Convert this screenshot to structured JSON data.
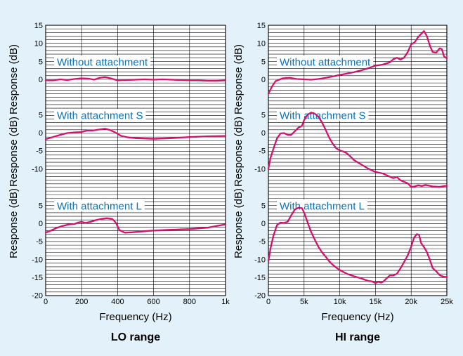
{
  "colors": {
    "background": "#e3f1fb",
    "curve": "#d4116c",
    "label": "#0b72b5",
    "grid": "#000000"
  },
  "chart_data": [
    {
      "type": "line",
      "caption": "LO range",
      "xlabel": "Frequency (Hz)",
      "ylabel": "Response (dB)",
      "xlim": [
        0,
        1000
      ],
      "x_tick_values": [
        0,
        200,
        400,
        600,
        800,
        1000
      ],
      "x_tick_labels": [
        "0",
        "200",
        "400",
        "600",
        "800",
        "1k"
      ],
      "grid": true,
      "panels": [
        {
          "label": "Without attachment",
          "ylim": [
            -10,
            15
          ],
          "y_ticks": [
            15,
            10,
            5,
            0
          ],
          "series": [
            {
              "points": [
                [
                  0,
                  -0.3
                ],
                [
                  40,
                  -0.3
                ],
                [
                  80,
                  0
                ],
                [
                  120,
                  -0.2
                ],
                [
                  160,
                  0.1
                ],
                [
                  200,
                  0.3
                ],
                [
                  240,
                  0.2
                ],
                [
                  270,
                  -0.1
                ],
                [
                  300,
                  0.4
                ],
                [
                  330,
                  0.6
                ],
                [
                  360,
                  0.3
                ],
                [
                  400,
                  -0.3
                ],
                [
                  450,
                  -0.2
                ],
                [
                  500,
                  -0.1
                ],
                [
                  550,
                  0
                ],
                [
                  600,
                  -0.1
                ],
                [
                  650,
                  0
                ],
                [
                  700,
                  -0.1
                ],
                [
                  750,
                  -0.2
                ],
                [
                  800,
                  -0.3
                ],
                [
                  850,
                  -0.3
                ],
                [
                  900,
                  -0.4
                ],
                [
                  950,
                  -0.4
                ],
                [
                  1000,
                  -0.3
                ]
              ]
            }
          ]
        },
        {
          "label": "With attachment S",
          "ylim": [
            -15,
            10
          ],
          "y_ticks": [
            5,
            0,
            -5,
            -10
          ],
          "series": [
            {
              "points": [
                [
                  0,
                  -1.8
                ],
                [
                  40,
                  -1.2
                ],
                [
                  80,
                  -0.6
                ],
                [
                  120,
                  -0.1
                ],
                [
                  160,
                  0.1
                ],
                [
                  200,
                  0.2
                ],
                [
                  230,
                  0.6
                ],
                [
                  260,
                  0.6
                ],
                [
                  300,
                  0.9
                ],
                [
                  330,
                  1.1
                ],
                [
                  360,
                  0.7
                ],
                [
                  390,
                  0
                ],
                [
                  420,
                  -0.9
                ],
                [
                  460,
                  -1.3
                ],
                [
                  500,
                  -1.5
                ],
                [
                  600,
                  -1.7
                ],
                [
                  700,
                  -1.5
                ],
                [
                  800,
                  -1.2
                ],
                [
                  900,
                  -1
                ],
                [
                  1000,
                  -0.9
                ]
              ]
            }
          ]
        },
        {
          "label": "With attachment L",
          "ylim": [
            -20,
            5
          ],
          "y_ticks": [
            5,
            0,
            -5,
            -10,
            -15,
            -20
          ],
          "series": [
            {
              "points": [
                [
                  0,
                  -2.6
                ],
                [
                  30,
                  -2
                ],
                [
                  60,
                  -1.3
                ],
                [
                  90,
                  -0.8
                ],
                [
                  130,
                  -0.3
                ],
                [
                  160,
                  -0.2
                ],
                [
                  180,
                  0.2
                ],
                [
                  200,
                  0.4
                ],
                [
                  220,
                  0.1
                ],
                [
                  250,
                  0.4
                ],
                [
                  280,
                  0.9
                ],
                [
                  310,
                  1.2
                ],
                [
                  340,
                  1.4
                ],
                [
                  370,
                  1.2
                ],
                [
                  390,
                  0.2
                ],
                [
                  410,
                  -1.9
                ],
                [
                  440,
                  -2.6
                ],
                [
                  480,
                  -2.5
                ],
                [
                  550,
                  -2.2
                ],
                [
                  600,
                  -2
                ],
                [
                  700,
                  -1.8
                ],
                [
                  800,
                  -1.6
                ],
                [
                  900,
                  -1.2
                ],
                [
                  1000,
                  -0.3
                ]
              ]
            }
          ]
        }
      ]
    },
    {
      "type": "line",
      "caption": "HI range",
      "xlabel": "Frequency (Hz)",
      "ylabel": "Response (dB)",
      "xlim": [
        0,
        25000
      ],
      "x_tick_values": [
        0,
        5000,
        10000,
        15000,
        20000,
        25000
      ],
      "x_tick_labels": [
        "0",
        "5k",
        "10k",
        "15k",
        "20k",
        "25k"
      ],
      "grid": true,
      "panels": [
        {
          "label": "Without attachment",
          "ylim": [
            -10,
            15
          ],
          "y_ticks": [
            15,
            10,
            5,
            0
          ],
          "series": [
            {
              "points": [
                [
                  0,
                  -4
                ],
                [
                  500,
                  -2
                ],
                [
                  1000,
                  -0.5
                ],
                [
                  2000,
                  0.3
                ],
                [
                  3000,
                  0.4
                ],
                [
                  4000,
                  0.1
                ],
                [
                  5000,
                  0
                ],
                [
                  6000,
                  -0.1
                ],
                [
                  7000,
                  0.1
                ],
                [
                  8000,
                  0.4
                ],
                [
                  9000,
                  0.8
                ],
                [
                  10000,
                  1.2
                ],
                [
                  11000,
                  1.6
                ],
                [
                  12000,
                  2
                ],
                [
                  13000,
                  2.5
                ],
                [
                  14000,
                  3.1
                ],
                [
                  15000,
                  3.8
                ],
                [
                  16000,
                  4.1
                ],
                [
                  17000,
                  4.7
                ],
                [
                  17500,
                  5.6
                ],
                [
                  18000,
                  6
                ],
                [
                  18500,
                  5.5
                ],
                [
                  19000,
                  6
                ],
                [
                  19500,
                  7.5
                ],
                [
                  20000,
                  9.7
                ],
                [
                  20500,
                  10.3
                ],
                [
                  21000,
                  11.8
                ],
                [
                  21500,
                  12.8
                ],
                [
                  21800,
                  13.4
                ],
                [
                  22200,
                  12
                ],
                [
                  22600,
                  9.5
                ],
                [
                  23000,
                  7.6
                ],
                [
                  23500,
                  7.4
                ],
                [
                  24000,
                  8.6
                ],
                [
                  24300,
                  8.4
                ],
                [
                  24600,
                  6.4
                ],
                [
                  25000,
                  5.8
                ]
              ]
            }
          ]
        },
        {
          "label": "With attachment S",
          "ylim": [
            -15,
            10
          ],
          "y_ticks": [
            5,
            0,
            -5,
            -10
          ],
          "series": [
            {
              "points": [
                [
                  0,
                  -10
                ],
                [
                  300,
                  -7
                ],
                [
                  700,
                  -4.5
                ],
                [
                  1200,
                  -1.6
                ],
                [
                  1700,
                  -0.2
                ],
                [
                  2200,
                  -0.1
                ],
                [
                  2700,
                  -0.6
                ],
                [
                  3200,
                  -0.6
                ],
                [
                  3700,
                  0.4
                ],
                [
                  4200,
                  1.4
                ],
                [
                  4700,
                  1.9
                ],
                [
                  5000,
                  3.5
                ],
                [
                  5500,
                  5
                ],
                [
                  6000,
                  5.6
                ],
                [
                  6500,
                  5.3
                ],
                [
                  7000,
                  4.4
                ],
                [
                  7500,
                  2.9
                ],
                [
                  8000,
                  0.9
                ],
                [
                  8500,
                  -1.3
                ],
                [
                  9000,
                  -3
                ],
                [
                  9500,
                  -4.3
                ],
                [
                  10000,
                  -4.9
                ],
                [
                  10500,
                  -5.2
                ],
                [
                  11000,
                  -5.7
                ],
                [
                  11500,
                  -6.6
                ],
                [
                  12000,
                  -7.6
                ],
                [
                  13000,
                  -8.8
                ],
                [
                  14000,
                  -10
                ],
                [
                  15000,
                  -10.9
                ],
                [
                  16000,
                  -11.3
                ],
                [
                  17000,
                  -12.2
                ],
                [
                  17500,
                  -12.6
                ],
                [
                  18000,
                  -12.3
                ],
                [
                  18500,
                  -13.2
                ],
                [
                  19500,
                  -14
                ],
                [
                  20000,
                  -15
                ],
                [
                  20500,
                  -14.9
                ],
                [
                  21000,
                  -14.6
                ],
                [
                  21500,
                  -14.8
                ],
                [
                  22000,
                  -14.5
                ],
                [
                  23000,
                  -14.9
                ],
                [
                  24000,
                  -15
                ],
                [
                  25000,
                  -14.7
                ]
              ]
            }
          ]
        },
        {
          "label": "With attachment L",
          "ylim": [
            -20,
            5
          ],
          "y_ticks": [
            5,
            0,
            -5,
            -10,
            -15,
            -20
          ],
          "series": [
            {
              "points": [
                [
                  0,
                  -10.5
                ],
                [
                  300,
                  -7
                ],
                [
                  700,
                  -3.5
                ],
                [
                  1200,
                  -0.5
                ],
                [
                  1700,
                  0.2
                ],
                [
                  2200,
                  0.1
                ],
                [
                  2700,
                  0.4
                ],
                [
                  3200,
                  2.2
                ],
                [
                  3700,
                  3.8
                ],
                [
                  4200,
                  4.3
                ],
                [
                  4700,
                  4.2
                ],
                [
                  5000,
                  3
                ],
                [
                  5500,
                  0.2
                ],
                [
                  6000,
                  -2.5
                ],
                [
                  6500,
                  -4.5
                ],
                [
                  7000,
                  -6.5
                ],
                [
                  7500,
                  -8
                ],
                [
                  8000,
                  -9.2
                ],
                [
                  8500,
                  -10.5
                ],
                [
                  9000,
                  -11.5
                ],
                [
                  9500,
                  -12.3
                ],
                [
                  10000,
                  -13
                ],
                [
                  11000,
                  -14
                ],
                [
                  12000,
                  -14.7
                ],
                [
                  13000,
                  -15.3
                ],
                [
                  14000,
                  -16
                ],
                [
                  14500,
                  -16.1
                ],
                [
                  15000,
                  -16.6
                ],
                [
                  15400,
                  -16.2
                ],
                [
                  15800,
                  -16.5
                ],
                [
                  16200,
                  -16
                ],
                [
                  16600,
                  -15.2
                ],
                [
                  17000,
                  -14.5
                ],
                [
                  17500,
                  -14.5
                ],
                [
                  18000,
                  -14
                ],
                [
                  18500,
                  -12.5
                ],
                [
                  19000,
                  -10.8
                ],
                [
                  19500,
                  -9
                ],
                [
                  20000,
                  -6.5
                ],
                [
                  20400,
                  -4
                ],
                [
                  20800,
                  -3
                ],
                [
                  21100,
                  -3.2
                ],
                [
                  21400,
                  -5.5
                ],
                [
                  21800,
                  -6.6
                ],
                [
                  22200,
                  -8
                ],
                [
                  22600,
                  -10
                ],
                [
                  23000,
                  -12.4
                ],
                [
                  23500,
                  -13.3
                ],
                [
                  24000,
                  -14.4
                ],
                [
                  24500,
                  -14.8
                ],
                [
                  25000,
                  -14.9
                ]
              ]
            }
          ]
        }
      ]
    }
  ]
}
